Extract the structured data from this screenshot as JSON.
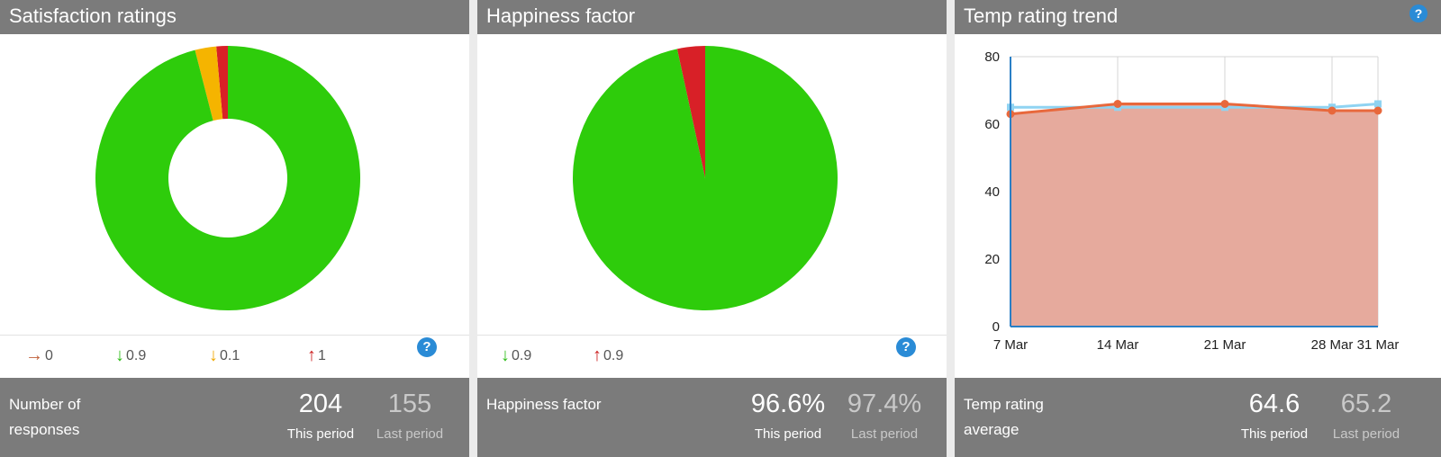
{
  "panels": {
    "satisfaction": {
      "title": "Satisfaction ratings",
      "legend": [
        {
          "arrow": "→",
          "value": "0",
          "color": "#c0603a"
        },
        {
          "arrow": "↓",
          "value": "0.9",
          "color": "#2dbd16"
        },
        {
          "arrow": "↓",
          "value": "0.1",
          "color": "#f0a800"
        },
        {
          "arrow": "↑",
          "value": "1",
          "color": "#cc2020"
        }
      ],
      "help": "?",
      "footer": {
        "label": "Number of responses",
        "current": "204",
        "current_label": "This period",
        "previous": "155",
        "previous_label": "Last period"
      }
    },
    "happiness": {
      "title": "Happiness factor",
      "legend": [
        {
          "arrow": "↓",
          "value": "0.9",
          "color": "#2dbd16"
        },
        {
          "arrow": "↑",
          "value": "0.9",
          "color": "#cc2020"
        }
      ],
      "help": "?",
      "footer": {
        "label": "Happiness factor",
        "current": "96.6%",
        "current_label": "This period",
        "previous": "97.4%",
        "previous_label": "Last period"
      }
    },
    "temp": {
      "title": "Temp rating trend",
      "help": "?",
      "footer": {
        "label": "Temp rating average",
        "current": "64.6",
        "current_label": "This period",
        "previous": "65.2",
        "previous_label": "Last period"
      }
    }
  },
  "colors": {
    "green": "#2ecc0b",
    "amber": "#f5b400",
    "red": "#d82027",
    "line_blue": "#8fd3f2",
    "line_orange": "#e8683c",
    "area_fill": "#e6aa9d",
    "help_blue": "#2a8bd6"
  },
  "chart_data": [
    {
      "type": "pie",
      "variant": "donut",
      "slices": [
        {
          "label": "green",
          "value": 96.0,
          "color": "#2ecc0b"
        },
        {
          "label": "amber",
          "value": 2.6,
          "color": "#f5b400"
        },
        {
          "label": "red",
          "value": 1.4,
          "color": "#d82027"
        }
      ]
    },
    {
      "type": "pie",
      "slices": [
        {
          "label": "green",
          "value": 96.6,
          "color": "#2ecc0b"
        },
        {
          "label": "red",
          "value": 3.4,
          "color": "#d82027"
        }
      ]
    },
    {
      "type": "area",
      "categories": [
        "7 Mar",
        "14 Mar",
        "21 Mar",
        "28 Mar",
        "31 Mar"
      ],
      "x": [
        7,
        14,
        21,
        28,
        31
      ],
      "series": [
        {
          "values": [
            65,
            65,
            65,
            65,
            66
          ],
          "color": "#8fd3f2",
          "marker": "square",
          "filled": false
        },
        {
          "values": [
            63,
            66,
            66,
            64,
            64
          ],
          "color": "#e8683c",
          "marker": "circle",
          "filled": true
        }
      ],
      "yticks": [
        0,
        20,
        40,
        60,
        80
      ],
      "ylim": [
        0,
        80
      ],
      "xlim": [
        7,
        31
      ],
      "grid": true
    }
  ]
}
